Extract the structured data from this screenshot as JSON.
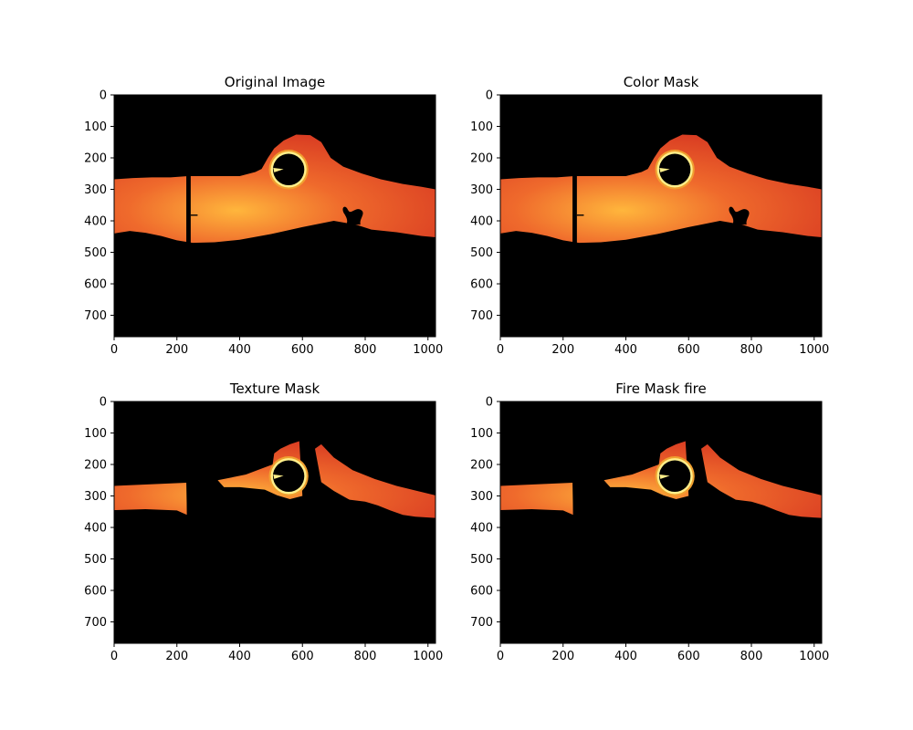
{
  "chart_data": [
    {
      "type": "image",
      "title": "Original Image",
      "xlim": [
        0,
        1024
      ],
      "ylim": [
        768,
        0
      ],
      "xticks": [
        0,
        200,
        400,
        600,
        800,
        1000
      ],
      "yticks": [
        0,
        100,
        200,
        300,
        400,
        500,
        600,
        700
      ],
      "content": "fire-scene",
      "grid": false
    },
    {
      "type": "image",
      "title": "Color Mask",
      "xlim": [
        0,
        1024
      ],
      "ylim": [
        768,
        0
      ],
      "xticks": [
        0,
        200,
        400,
        600,
        800,
        1000
      ],
      "yticks": [
        0,
        100,
        200,
        300,
        400,
        500,
        600,
        700
      ],
      "content": "fire-scene",
      "grid": false
    },
    {
      "type": "image",
      "title": "Texture Mask",
      "xlim": [
        0,
        1024
      ],
      "ylim": [
        768,
        0
      ],
      "xticks": [
        0,
        200,
        400,
        600,
        800,
        1000
      ],
      "yticks": [
        0,
        100,
        200,
        300,
        400,
        500,
        600,
        700
      ],
      "content": "masked-fire",
      "grid": false
    },
    {
      "type": "image",
      "title": "Fire Mask fire",
      "xlim": [
        0,
        1024
      ],
      "ylim": [
        768,
        0
      ],
      "xticks": [
        0,
        200,
        400,
        600,
        800,
        1000
      ],
      "yticks": [
        0,
        100,
        200,
        300,
        400,
        500,
        600,
        700
      ],
      "content": "masked-fire",
      "grid": false
    }
  ],
  "colors": {
    "background": "#000000",
    "fire_dark": "#d83a22",
    "fire_mid": "#ef6a2c",
    "fire_bright": "#ffb63c",
    "sun_ring": "#ffef8a"
  }
}
